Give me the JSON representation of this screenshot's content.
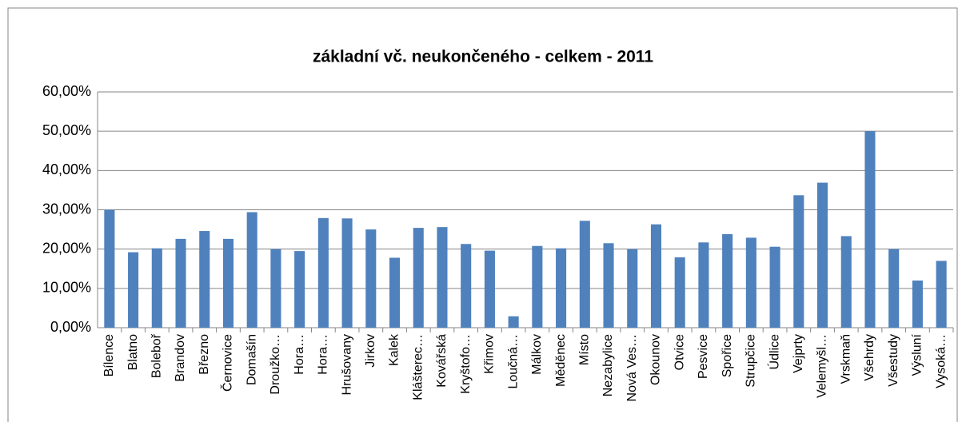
{
  "chart_data": {
    "type": "bar",
    "title": "základní vč. neukončeného - celkem - 2011",
    "categories": [
      "Bílence",
      "Blatno",
      "Boleboř",
      "Brandov",
      "Březno",
      "Černovice",
      "Domašín",
      "Droužko…",
      "Hora…",
      "Hora…",
      "Hrušovany",
      "Jirkov",
      "Kalek",
      "Klášterec…",
      "Kovářská",
      "Kryštofo…",
      "Křimov",
      "Loučná…",
      "Málkov",
      "Měděnec",
      "Místo",
      "Nezabylice",
      "Nová Ves…",
      "Okounov",
      "Otvice",
      "Pesvice",
      "Spořice",
      "Strupčice",
      "Údlice",
      "Vejprty",
      "Velemyšl…",
      "Vrskmaň",
      "Všehrdy",
      "Všestudy",
      "Výsluní",
      "Vysoká…"
    ],
    "values": [
      30,
      19.2,
      20.2,
      22.6,
      24.6,
      22.6,
      29.4,
      20,
      19.5,
      27.9,
      27.8,
      25,
      17.8,
      25.4,
      25.6,
      21.3,
      19.6,
      2.9,
      20.8,
      20.2,
      27.2,
      21.5,
      20,
      26.3,
      17.9,
      21.7,
      23.8,
      22.9,
      20.6,
      33.7,
      36.9,
      23.3,
      50,
      20,
      12,
      17
    ],
    "color": "#4f81bd",
    "ylim": [
      0,
      60
    ],
    "yticks": [
      {
        "value": 0,
        "label": "0,00%"
      },
      {
        "value": 10,
        "label": "10,00%"
      },
      {
        "value": 20,
        "label": "20,00%"
      },
      {
        "value": 30,
        "label": "30,00%"
      },
      {
        "value": 40,
        "label": "40,00%"
      },
      {
        "value": 50,
        "label": "50,00%"
      },
      {
        "value": 60,
        "label": "60,00%"
      }
    ],
    "grid": true
  }
}
